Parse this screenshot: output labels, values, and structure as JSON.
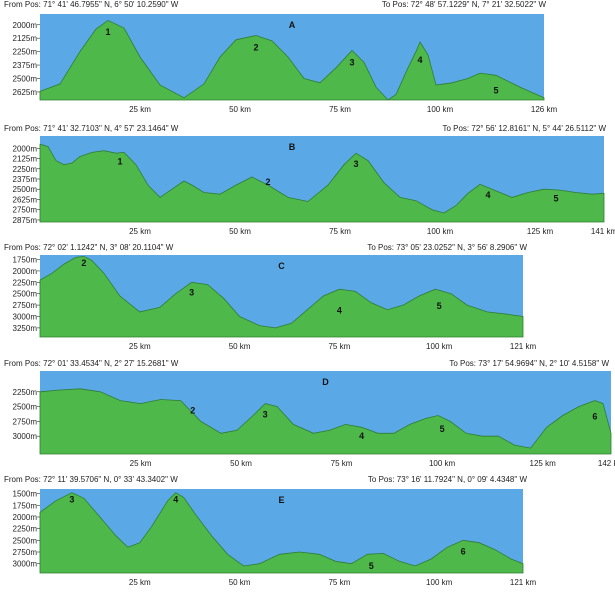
{
  "colors": {
    "sky": "#5aa9e6",
    "ground": "#4fb84a",
    "ridge": "#2e7d32"
  },
  "chart_data": [
    {
      "type": "area",
      "title": "A",
      "from_label": "From Pos: 71° 41' 46.7955\" N, 6° 50' 10.2590\" W",
      "to_label": "To Pos: 72° 48' 57.1229\" N, 7° 21' 32.5022\" W",
      "xlim": [
        0,
        126
      ],
      "ylim": [
        2700,
        1900
      ],
      "yticks": [
        {
          "v": 2000,
          "label": "2000m"
        },
        {
          "v": 2125,
          "label": "2125m"
        },
        {
          "v": 2250,
          "label": "2250m"
        },
        {
          "v": 2375,
          "label": "2375m"
        },
        {
          "v": 2500,
          "label": "2500m"
        },
        {
          "v": 2625,
          "label": "2625m"
        }
      ],
      "xticks": [
        {
          "v": 25,
          "label": "25 km"
        },
        {
          "v": 50,
          "label": "50 km"
        },
        {
          "v": 75,
          "label": "75 km"
        },
        {
          "v": 100,
          "label": "100 km"
        },
        {
          "v": 126,
          "label": "126 km"
        }
      ],
      "profile": [
        [
          0,
          2620
        ],
        [
          5,
          2550
        ],
        [
          10,
          2250
        ],
        [
          14,
          2040
        ],
        [
          17,
          1960
        ],
        [
          21,
          2030
        ],
        [
          25,
          2300
        ],
        [
          30,
          2560
        ],
        [
          36,
          2680
        ],
        [
          41,
          2550
        ],
        [
          45,
          2300
        ],
        [
          49,
          2140
        ],
        [
          54,
          2100
        ],
        [
          58,
          2150
        ],
        [
          62,
          2300
        ],
        [
          66,
          2500
        ],
        [
          70,
          2540
        ],
        [
          74,
          2400
        ],
        [
          78,
          2240
        ],
        [
          81,
          2350
        ],
        [
          84,
          2580
        ],
        [
          87,
          2700
        ],
        [
          89,
          2650
        ],
        [
          92,
          2400
        ],
        [
          94,
          2250
        ],
        [
          95,
          2160
        ],
        [
          97,
          2280
        ],
        [
          99,
          2560
        ],
        [
          103,
          2540
        ],
        [
          107,
          2500
        ],
        [
          110,
          2450
        ],
        [
          114,
          2470
        ],
        [
          120,
          2580
        ],
        [
          126,
          2680
        ]
      ],
      "peaks": [
        {
          "label": "1",
          "x": 17,
          "y": 2060
        },
        {
          "label": "2",
          "x": 54,
          "y": 2200
        },
        {
          "label": "3",
          "x": 78,
          "y": 2340
        },
        {
          "label": "4",
          "x": 95,
          "y": 2320
        },
        {
          "label": "5",
          "x": 114,
          "y": 2600
        }
      ]
    },
    {
      "type": "area",
      "title": "B",
      "from_label": "From Pos: 71° 41' 32.7103\" N, 4° 57' 23.1464\" W",
      "to_label": "To Pos: 72° 56' 12.8161\" N, 5° 44' 26.5112\" W",
      "xlim": [
        0,
        141
      ],
      "ylim": [
        2900,
        1850
      ],
      "yticks": [
        {
          "v": 2000,
          "label": "2000m"
        },
        {
          "v": 2125,
          "label": "2125m"
        },
        {
          "v": 2250,
          "label": "2250m"
        },
        {
          "v": 2375,
          "label": "2375m"
        },
        {
          "v": 2500,
          "label": "2500m"
        },
        {
          "v": 2625,
          "label": "2625m"
        },
        {
          "v": 2750,
          "label": "2750m"
        },
        {
          "v": 2875,
          "label": "2875m"
        }
      ],
      "xticks": [
        {
          "v": 25,
          "label": "25 km"
        },
        {
          "v": 50,
          "label": "50 km"
        },
        {
          "v": 75,
          "label": "75 km"
        },
        {
          "v": 100,
          "label": "100 km"
        },
        {
          "v": 125,
          "label": "125 km"
        },
        {
          "v": 141,
          "label": "141 km"
        }
      ],
      "profile": [
        [
          0,
          1950
        ],
        [
          2,
          1980
        ],
        [
          4,
          2150
        ],
        [
          6,
          2200
        ],
        [
          8,
          2180
        ],
        [
          10,
          2100
        ],
        [
          13,
          2050
        ],
        [
          16,
          2030
        ],
        [
          19,
          2060
        ],
        [
          21,
          2050
        ],
        [
          24,
          2200
        ],
        [
          27,
          2450
        ],
        [
          30,
          2600
        ],
        [
          33,
          2500
        ],
        [
          36,
          2400
        ],
        [
          38,
          2450
        ],
        [
          41,
          2540
        ],
        [
          45,
          2560
        ],
        [
          49,
          2450
        ],
        [
          53,
          2350
        ],
        [
          57,
          2450
        ],
        [
          62,
          2600
        ],
        [
          67,
          2650
        ],
        [
          72,
          2450
        ],
        [
          76,
          2200
        ],
        [
          79,
          2060
        ],
        [
          82,
          2150
        ],
        [
          86,
          2420
        ],
        [
          90,
          2600
        ],
        [
          94,
          2640
        ],
        [
          98,
          2750
        ],
        [
          101,
          2790
        ],
        [
          104,
          2700
        ],
        [
          107,
          2550
        ],
        [
          110,
          2440
        ],
        [
          114,
          2520
        ],
        [
          118,
          2600
        ],
        [
          122,
          2540
        ],
        [
          126,
          2500
        ],
        [
          130,
          2510
        ],
        [
          134,
          2540
        ],
        [
          138,
          2560
        ],
        [
          141,
          2550
        ]
      ],
      "peaks": [
        {
          "label": "1",
          "x": 20,
          "y": 2150
        },
        {
          "label": "2",
          "x": 57,
          "y": 2400
        },
        {
          "label": "3",
          "x": 79,
          "y": 2180
        },
        {
          "label": "4",
          "x": 112,
          "y": 2560
        },
        {
          "label": "5",
          "x": 129,
          "y": 2600
        }
      ]
    },
    {
      "type": "area",
      "title": "C",
      "from_label": "From Pos: 72° 02' 1.1242\" N, 3° 08' 20.1104\" W",
      "to_label": "To Pos: 73° 05' 23.0252\" N, 3° 56' 8.2906\" W",
      "xlim": [
        0,
        121
      ],
      "ylim": [
        3450,
        1650
      ],
      "yticks": [
        {
          "v": 1750,
          "label": "1750m"
        },
        {
          "v": 2000,
          "label": "2000m"
        },
        {
          "v": 2250,
          "label": "2250m"
        },
        {
          "v": 2500,
          "label": "2500m"
        },
        {
          "v": 2750,
          "label": "2750m"
        },
        {
          "v": 3000,
          "label": "3000m"
        },
        {
          "v": 3250,
          "label": "3250m"
        }
      ],
      "xticks": [
        {
          "v": 25,
          "label": "25 km"
        },
        {
          "v": 50,
          "label": "50 km"
        },
        {
          "v": 75,
          "label": "75 km"
        },
        {
          "v": 100,
          "label": "100 km"
        },
        {
          "v": 121,
          "label": "121 km"
        }
      ],
      "profile": [
        [
          0,
          2200
        ],
        [
          3,
          2050
        ],
        [
          6,
          1850
        ],
        [
          9,
          1700
        ],
        [
          11,
          1680
        ],
        [
          13,
          1770
        ],
        [
          16,
          2050
        ],
        [
          20,
          2550
        ],
        [
          25,
          2900
        ],
        [
          30,
          2800
        ],
        [
          34,
          2500
        ],
        [
          38,
          2250
        ],
        [
          42,
          2300
        ],
        [
          46,
          2600
        ],
        [
          50,
          3000
        ],
        [
          55,
          3200
        ],
        [
          59,
          3250
        ],
        [
          63,
          3150
        ],
        [
          67,
          2850
        ],
        [
          71,
          2550
        ],
        [
          75,
          2400
        ],
        [
          79,
          2450
        ],
        [
          83,
          2700
        ],
        [
          87,
          2850
        ],
        [
          91,
          2750
        ],
        [
          95,
          2550
        ],
        [
          99,
          2400
        ],
        [
          103,
          2500
        ],
        [
          107,
          2750
        ],
        [
          112,
          2900
        ],
        [
          117,
          2950
        ],
        [
          121,
          3000
        ]
      ],
      "peaks": [
        {
          "label": "2",
          "x": 11,
          "y": 1800
        },
        {
          "label": "3",
          "x": 38,
          "y": 2450
        },
        {
          "label": "4",
          "x": 75,
          "y": 2850
        },
        {
          "label": "5",
          "x": 100,
          "y": 2750
        }
      ]
    },
    {
      "type": "area",
      "title": "D",
      "from_label": "From Pos: 72° 01' 33.4534\" N, 2° 27' 15.2681\" W",
      "to_label": "To Pos: 73° 17' 54.9694\" N, 2° 10' 4.5158\" W",
      "xlim": [
        0,
        142
      ],
      "ylim": [
        3300,
        1900
      ],
      "yticks": [
        {
          "v": 2250,
          "label": "2250m"
        },
        {
          "v": 2500,
          "label": "2500m"
        },
        {
          "v": 2750,
          "label": "2750m"
        },
        {
          "v": 3000,
          "label": "3000m"
        }
      ],
      "xticks": [
        {
          "v": 25,
          "label": "25 km"
        },
        {
          "v": 50,
          "label": "50 km"
        },
        {
          "v": 75,
          "label": "75 km"
        },
        {
          "v": 100,
          "label": "100 km"
        },
        {
          "v": 125,
          "label": "125 km"
        },
        {
          "v": 142,
          "label": "142 km"
        }
      ],
      "profile": [
        [
          0,
          2250
        ],
        [
          5,
          2220
        ],
        [
          10,
          2200
        ],
        [
          15,
          2250
        ],
        [
          20,
          2400
        ],
        [
          25,
          2450
        ],
        [
          30,
          2380
        ],
        [
          35,
          2400
        ],
        [
          40,
          2750
        ],
        [
          45,
          2950
        ],
        [
          49,
          2900
        ],
        [
          53,
          2650
        ],
        [
          56,
          2450
        ],
        [
          59,
          2500
        ],
        [
          63,
          2800
        ],
        [
          68,
          2950
        ],
        [
          72,
          2900
        ],
        [
          76,
          2800
        ],
        [
          80,
          2850
        ],
        [
          84,
          2950
        ],
        [
          88,
          2950
        ],
        [
          92,
          2800
        ],
        [
          96,
          2700
        ],
        [
          99,
          2650
        ],
        [
          102,
          2750
        ],
        [
          106,
          2950
        ],
        [
          110,
          3000
        ],
        [
          114,
          3000
        ],
        [
          118,
          3150
        ],
        [
          122,
          3200
        ],
        [
          126,
          2850
        ],
        [
          130,
          2650
        ],
        [
          134,
          2500
        ],
        [
          138,
          2400
        ],
        [
          140,
          2450
        ],
        [
          142,
          2950
        ]
      ],
      "peaks": [
        {
          "label": "2",
          "x": 38,
          "y": 2550
        },
        {
          "label": "3",
          "x": 56,
          "y": 2620
        },
        {
          "label": "4",
          "x": 80,
          "y": 2980
        },
        {
          "label": "5",
          "x": 100,
          "y": 2860
        },
        {
          "label": "6",
          "x": 138,
          "y": 2650
        }
      ]
    },
    {
      "type": "area",
      "title": "E",
      "from_label": "From Pos: 72° 11' 39.5706\" N, 0° 33' 43.3402\" W",
      "to_label": "To Pos: 73° 16' 11.7924\" N, 0° 09' 4.4348\" W",
      "xlim": [
        0,
        121
      ],
      "ylim": [
        3200,
        1400
      ],
      "yticks": [
        {
          "v": 1500,
          "label": "1500m"
        },
        {
          "v": 1750,
          "label": "1750m"
        },
        {
          "v": 2000,
          "label": "2000m"
        },
        {
          "v": 2250,
          "label": "2250m"
        },
        {
          "v": 2500,
          "label": "2500m"
        },
        {
          "v": 2750,
          "label": "2750m"
        },
        {
          "v": 3000,
          "label": "3000m"
        }
      ],
      "xticks": [
        {
          "v": 25,
          "label": "25 km"
        },
        {
          "v": 50,
          "label": "50 km"
        },
        {
          "v": 75,
          "label": "75 km"
        },
        {
          "v": 100,
          "label": "100 km"
        },
        {
          "v": 121,
          "label": "121 km"
        }
      ],
      "profile": [
        [
          0,
          1900
        ],
        [
          4,
          1650
        ],
        [
          8,
          1480
        ],
        [
          11,
          1600
        ],
        [
          15,
          2000
        ],
        [
          19,
          2400
        ],
        [
          22,
          2650
        ],
        [
          25,
          2550
        ],
        [
          28,
          2200
        ],
        [
          32,
          1650
        ],
        [
          34,
          1480
        ],
        [
          36,
          1580
        ],
        [
          39,
          1950
        ],
        [
          43,
          2400
        ],
        [
          47,
          2800
        ],
        [
          51,
          3050
        ],
        [
          55,
          3000
        ],
        [
          60,
          2800
        ],
        [
          65,
          2750
        ],
        [
          70,
          2800
        ],
        [
          74,
          2950
        ],
        [
          78,
          3000
        ],
        [
          82,
          2800
        ],
        [
          86,
          2780
        ],
        [
          90,
          2950
        ],
        [
          94,
          3050
        ],
        [
          98,
          2900
        ],
        [
          102,
          2650
        ],
        [
          106,
          2500
        ],
        [
          110,
          2550
        ],
        [
          114,
          2700
        ],
        [
          118,
          2900
        ],
        [
          121,
          3000
        ]
      ],
      "peaks": [
        {
          "label": "3",
          "x": 8,
          "y": 1600
        },
        {
          "label": "4",
          "x": 34,
          "y": 1600
        },
        {
          "label": "5",
          "x": 83,
          "y": 3030
        },
        {
          "label": "6",
          "x": 106,
          "y": 2720
        }
      ]
    }
  ]
}
